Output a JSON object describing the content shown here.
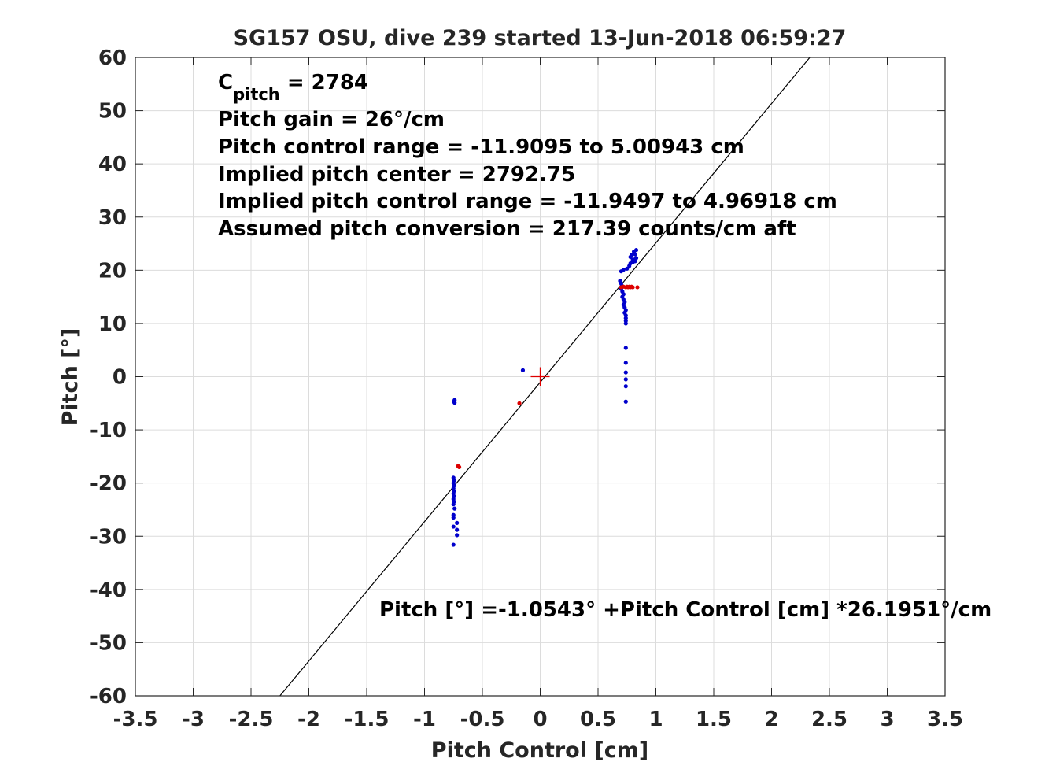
{
  "chart_data": {
    "type": "scatter",
    "title": "SG157 OSU, dive 239 started 13-Jun-2018 06:59:27",
    "xlabel": "Pitch Control [cm]",
    "ylabel": "Pitch [°]",
    "xlim": [
      -3.5,
      3.5
    ],
    "ylim": [
      -60,
      60
    ],
    "xticks": [
      -3.5,
      -3,
      -2.5,
      -2,
      -1.5,
      -1,
      -0.5,
      0,
      0.5,
      1,
      1.5,
      2,
      2.5,
      3,
      3.5
    ],
    "xtick_labels": [
      "-3.5",
      "-3",
      "-2.5",
      "-2",
      "-1.5",
      "-1",
      "-0.5",
      "0",
      "0.5",
      "1",
      "1.5",
      "2",
      "2.5",
      "3",
      "3.5"
    ],
    "yticks": [
      -60,
      -50,
      -40,
      -30,
      -20,
      -10,
      0,
      10,
      20,
      30,
      40,
      50,
      60
    ],
    "ytick_labels": [
      "-60",
      "-50",
      "-40",
      "-30",
      "-20",
      "-10",
      "0",
      "10",
      "20",
      "30",
      "40",
      "50",
      "60"
    ],
    "grid": true,
    "colors": {
      "blue": "#0000cc",
      "red": "#dd0000",
      "fit": "#000000"
    },
    "fit_line": {
      "intercept": -1.0543,
      "slope": 26.1951
    },
    "center_marker": {
      "x": 0,
      "y": 0
    },
    "annotations": {
      "c_pitch_base": "C",
      "c_pitch_sub": "pitch",
      "c_pitch_value": " = 2784",
      "pitch_gain": "Pitch gain = 26°/cm",
      "pitch_control_range": "Pitch control range = -11.9095 to 5.00943 cm",
      "implied_center": "Implied pitch center = 2792.75",
      "implied_range": "Implied pitch control range = -11.9497 to 4.96918 cm",
      "conversion": "Assumed pitch conversion = 217.39 counts/cm aft",
      "fit_equation": "Pitch [°] =-1.0543° +Pitch Control [cm] *26.1951°/cm"
    },
    "series": [
      {
        "color": "#0000cc",
        "points": [
          [
            -0.74,
            -4.4
          ],
          [
            -0.745,
            -4.7
          ],
          [
            -0.74,
            -4.9
          ],
          [
            -0.75,
            -19.0
          ],
          [
            -0.745,
            -19.5
          ],
          [
            -0.75,
            -20.0
          ],
          [
            -0.745,
            -20.5
          ],
          [
            -0.75,
            -21.0
          ],
          [
            -0.745,
            -21.5
          ],
          [
            -0.75,
            -22.0
          ],
          [
            -0.745,
            -22.5
          ],
          [
            -0.75,
            -23.0
          ],
          [
            -0.745,
            -23.5
          ],
          [
            -0.75,
            -24.0
          ],
          [
            -0.74,
            -24.8
          ],
          [
            -0.75,
            -26.0
          ],
          [
            -0.75,
            -26.5
          ],
          [
            -0.72,
            -27.5
          ],
          [
            -0.75,
            -28.2
          ],
          [
            -0.72,
            -28.8
          ],
          [
            -0.72,
            -29.8
          ],
          [
            -0.75,
            -31.6
          ],
          [
            -0.15,
            1.2
          ],
          [
            0.69,
            18.0
          ],
          [
            0.7,
            17.5
          ],
          [
            0.71,
            17.0
          ],
          [
            0.7,
            16.5
          ],
          [
            0.71,
            16.0
          ],
          [
            0.72,
            15.5
          ],
          [
            0.71,
            15.0
          ],
          [
            0.72,
            14.5
          ],
          [
            0.73,
            14.0
          ],
          [
            0.72,
            13.5
          ],
          [
            0.73,
            13.0
          ],
          [
            0.74,
            12.5
          ],
          [
            0.73,
            12.0
          ],
          [
            0.74,
            11.5
          ],
          [
            0.74,
            11.0
          ],
          [
            0.74,
            10.5
          ],
          [
            0.74,
            10.0
          ],
          [
            0.7,
            19.8
          ],
          [
            0.72,
            20.1
          ],
          [
            0.75,
            20.3
          ],
          [
            0.77,
            20.8
          ],
          [
            0.78,
            21.3
          ],
          [
            0.8,
            21.5
          ],
          [
            0.82,
            21.7
          ],
          [
            0.81,
            22.0
          ],
          [
            0.83,
            22.3
          ],
          [
            0.78,
            22.5
          ],
          [
            0.79,
            22.9
          ],
          [
            0.82,
            23.0
          ],
          [
            0.81,
            23.5
          ],
          [
            0.83,
            23.8
          ],
          [
            0.8,
            22.0
          ],
          [
            0.74,
            5.4
          ],
          [
            0.74,
            2.6
          ],
          [
            0.74,
            0.8
          ],
          [
            0.74,
            -0.5
          ],
          [
            0.74,
            -1.8
          ],
          [
            0.74,
            -4.7
          ]
        ]
      },
      {
        "color": "#dd0000",
        "points": [
          [
            -0.71,
            -16.8
          ],
          [
            -0.7,
            -17.0
          ],
          [
            -0.18,
            -5.0
          ],
          [
            0.7,
            16.8
          ],
          [
            0.72,
            16.9
          ],
          [
            0.74,
            16.8
          ],
          [
            0.75,
            16.9
          ],
          [
            0.76,
            16.8
          ],
          [
            0.77,
            16.9
          ],
          [
            0.78,
            16.8
          ],
          [
            0.79,
            16.9
          ],
          [
            0.8,
            16.8
          ],
          [
            0.84,
            16.8
          ]
        ]
      }
    ]
  }
}
